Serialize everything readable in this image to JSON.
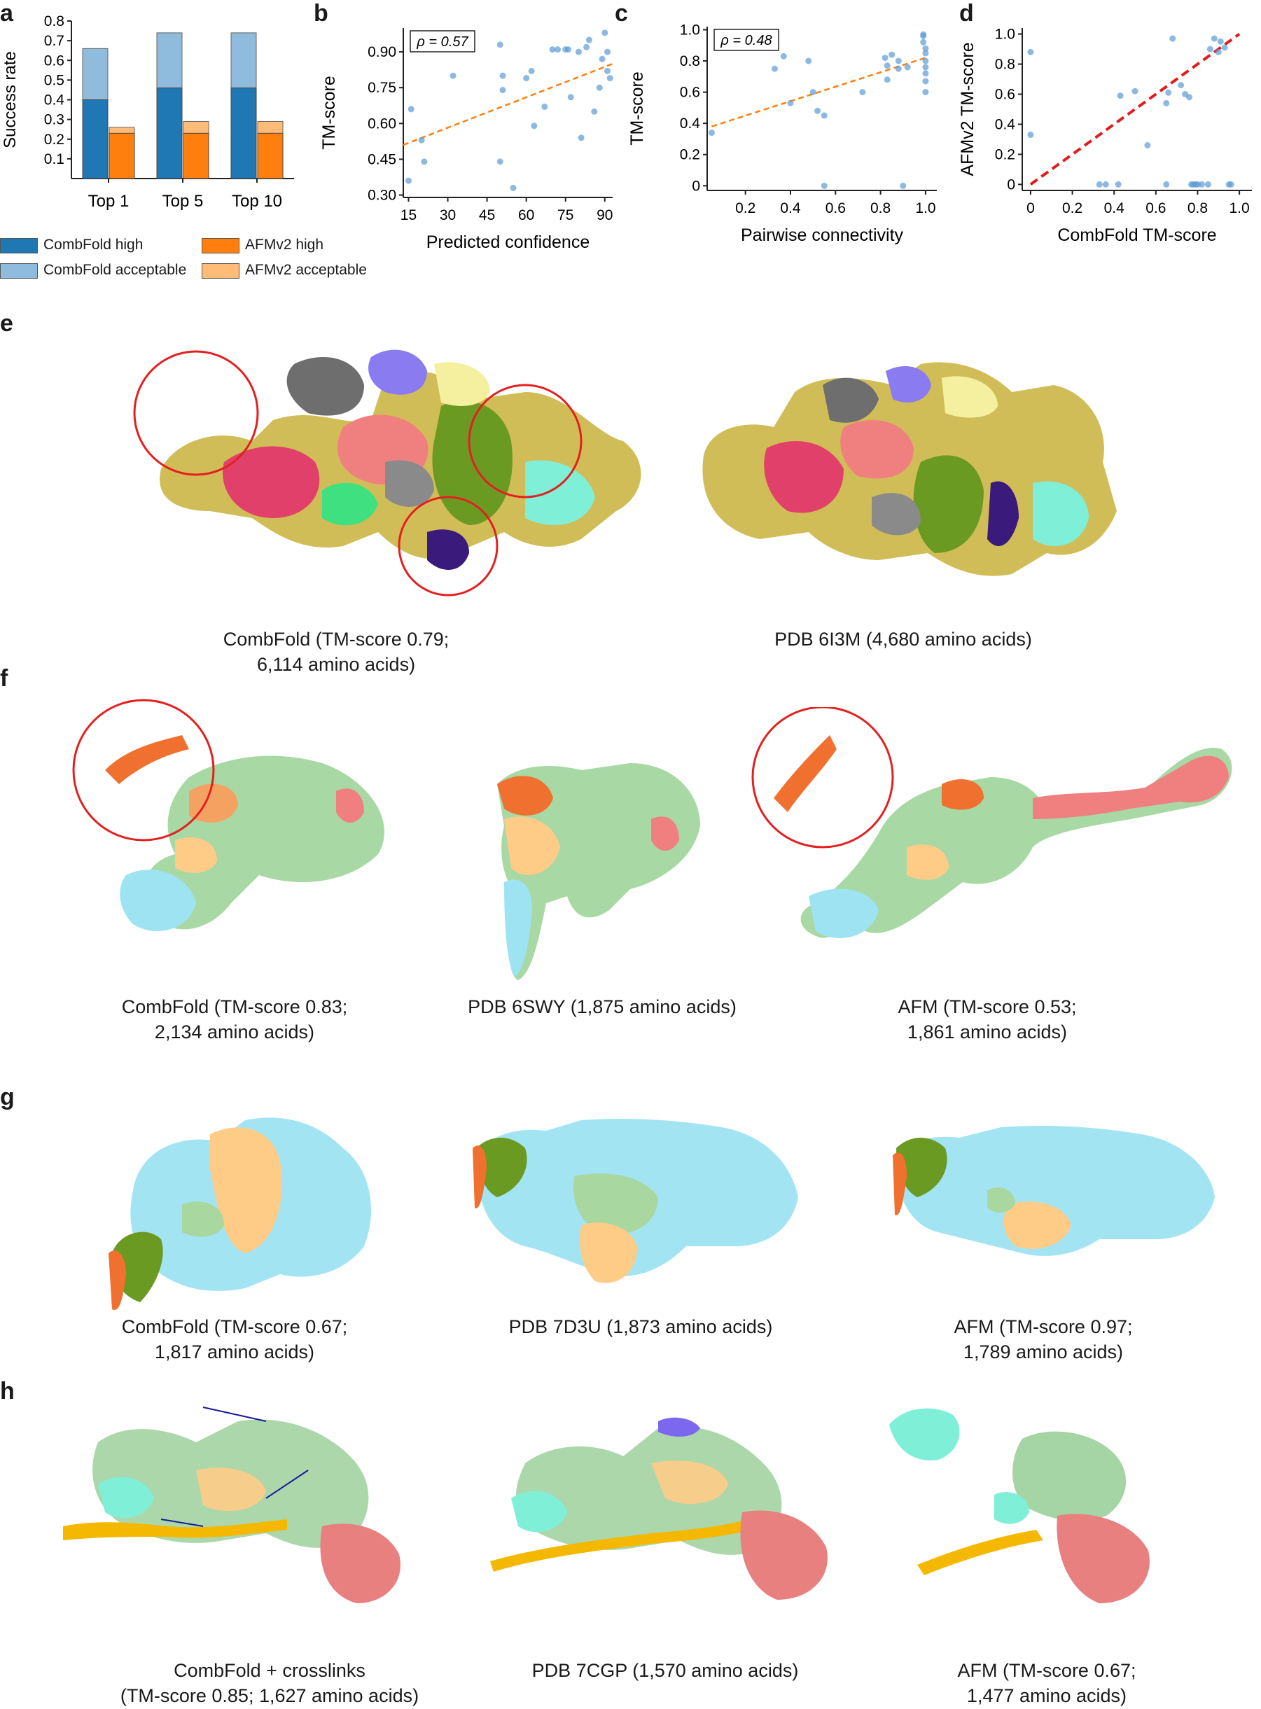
{
  "panels": {
    "a": {
      "label": "a"
    },
    "b": {
      "label": "b"
    },
    "c": {
      "label": "c"
    },
    "d": {
      "label": "d"
    },
    "e": {
      "label": "e"
    },
    "f": {
      "label": "f"
    },
    "g": {
      "label": "g"
    },
    "h": {
      "label": "h"
    }
  },
  "chart_data": [
    {
      "panel": "a",
      "type": "bar",
      "ylabel": "Success rate",
      "xlabel": "",
      "categories": [
        "Top 1",
        "Top 5",
        "Top 10"
      ],
      "ylim": [
        0,
        0.8
      ],
      "yticks": [
        "0.1",
        "0.2",
        "0.3",
        "0.4",
        "0.5",
        "0.6",
        "0.7",
        "0.8"
      ],
      "series": [
        {
          "name": "CombFold high",
          "values": [
            0.4,
            0.46,
            0.46
          ],
          "color": "#1f77b4"
        },
        {
          "name": "CombFold acceptable",
          "values": [
            0.66,
            0.74,
            0.74
          ],
          "color": "#8fbbdc"
        },
        {
          "name": "AFMv2 high",
          "values": [
            0.23,
            0.23,
            0.23
          ],
          "color": "#ff7f0e"
        },
        {
          "name": "AFMv2 acceptable",
          "values": [
            0.26,
            0.29,
            0.29
          ],
          "color": "#ffbb78"
        }
      ],
      "legend": [
        "CombFold high",
        "CombFold acceptable",
        "AFMv2 high",
        "AFMv2 acceptable"
      ]
    },
    {
      "panel": "b",
      "type": "scatter",
      "xlabel": "Predicted confidence",
      "ylabel": "TM-score",
      "annotation": "ρ = 0.57",
      "xlim": [
        13,
        93
      ],
      "ylim": [
        0.29,
        1.0
      ],
      "xticks": [
        "15",
        "30",
        "45",
        "60",
        "75",
        "90"
      ],
      "yticks": [
        "0.30",
        "0.45",
        "0.60",
        "0.75",
        "0.90"
      ],
      "trend": {
        "x": [
          13,
          93
        ],
        "y": [
          0.51,
          0.85
        ]
      },
      "points": [
        [
          15,
          0.36
        ],
        [
          16,
          0.66
        ],
        [
          20,
          0.53
        ],
        [
          21,
          0.44
        ],
        [
          32,
          0.8
        ],
        [
          50,
          0.93
        ],
        [
          51,
          0.8
        ],
        [
          51,
          0.74
        ],
        [
          50,
          0.44
        ],
        [
          55,
          0.33
        ],
        [
          60,
          0.79
        ],
        [
          62,
          0.82
        ],
        [
          63,
          0.59
        ],
        [
          67,
          0.67
        ],
        [
          70,
          0.91
        ],
        [
          72,
          0.91
        ],
        [
          75,
          0.91
        ],
        [
          76,
          0.91
        ],
        [
          77,
          0.71
        ],
        [
          80,
          0.9
        ],
        [
          81,
          0.54
        ],
        [
          83,
          0.92
        ],
        [
          84,
          0.95
        ],
        [
          86,
          0.65
        ],
        [
          88,
          0.75
        ],
        [
          89,
          0.87
        ],
        [
          90,
          0.98
        ],
        [
          91,
          0.9
        ],
        [
          91,
          0.82
        ],
        [
          92,
          0.79
        ]
      ]
    },
    {
      "panel": "c",
      "type": "scatter",
      "xlabel": "Pairwise connectivity",
      "ylabel": "TM-score",
      "annotation": "ρ = 0.48",
      "xlim": [
        0.03,
        1.05
      ],
      "ylim": [
        -0.03,
        1.02
      ],
      "xticks": [
        "0.2",
        "0.4",
        "0.6",
        "0.8",
        "1.0"
      ],
      "yticks": [
        "0",
        "0.2",
        "0.4",
        "0.6",
        "0.8",
        "1.0"
      ],
      "trend": {
        "x": [
          0.05,
          1.0
        ],
        "y": [
          0.38,
          0.82
        ]
      },
      "points": [
        [
          0.05,
          0.34
        ],
        [
          0.33,
          0.75
        ],
        [
          0.37,
          0.83
        ],
        [
          0.4,
          0.53
        ],
        [
          0.48,
          0.8
        ],
        [
          0.5,
          0.6
        ],
        [
          0.52,
          0.48
        ],
        [
          0.55,
          0.45
        ],
        [
          0.55,
          0.0
        ],
        [
          0.72,
          0.6
        ],
        [
          0.82,
          0.82
        ],
        [
          0.83,
          0.77
        ],
        [
          0.83,
          0.68
        ],
        [
          0.85,
          0.84
        ],
        [
          0.88,
          0.75
        ],
        [
          0.88,
          0.8
        ],
        [
          0.9,
          0.0
        ],
        [
          0.92,
          0.76
        ],
        [
          0.99,
          0.97
        ],
        [
          0.99,
          0.92
        ],
        [
          1.0,
          0.88
        ],
        [
          1.0,
          0.85
        ],
        [
          1.0,
          0.8
        ],
        [
          1.0,
          0.76
        ],
        [
          1.0,
          0.72
        ],
        [
          1.0,
          0.67
        ],
        [
          1.0,
          0.6
        ],
        [
          0.99,
          0.96
        ]
      ]
    },
    {
      "panel": "d",
      "type": "scatter",
      "xlabel": "CombFold TM-score",
      "ylabel": "AFMv2 TM-score",
      "xlim": [
        -0.04,
        1.06
      ],
      "ylim": [
        -0.04,
        1.04
      ],
      "xticks": [
        "0",
        "0.2",
        "0.4",
        "0.6",
        "0.8",
        "1.0"
      ],
      "yticks": [
        "0",
        "0.2",
        "0.4",
        "0.6",
        "0.8",
        "1.0"
      ],
      "diagonal": {
        "x": [
          0,
          1.0
        ],
        "y": [
          0,
          1.0
        ]
      },
      "points": [
        [
          0,
          0.88
        ],
        [
          0,
          0.33
        ],
        [
          0.33,
          0.0
        ],
        [
          0.36,
          0.0
        ],
        [
          0.42,
          0.0
        ],
        [
          0.43,
          0.59
        ],
        [
          0.5,
          0.62
        ],
        [
          0.56,
          0.26
        ],
        [
          0.65,
          0.54
        ],
        [
          0.65,
          0.0
        ],
        [
          0.66,
          0.61
        ],
        [
          0.68,
          0.97
        ],
        [
          0.72,
          0.66
        ],
        [
          0.74,
          0.6
        ],
        [
          0.76,
          0.58
        ],
        [
          0.77,
          0.0
        ],
        [
          0.78,
          0.0
        ],
        [
          0.79,
          0.0
        ],
        [
          0.8,
          0.0
        ],
        [
          0.82,
          0.0
        ],
        [
          0.85,
          0.0
        ],
        [
          0.86,
          0.9
        ],
        [
          0.88,
          0.97
        ],
        [
          0.9,
          0.88
        ],
        [
          0.91,
          0.95
        ],
        [
          0.93,
          0.91
        ],
        [
          0.95,
          0.0
        ],
        [
          0.96,
          0.0
        ]
      ]
    }
  ],
  "captions": {
    "e1": [
      "CombFold (TM-score 0.79;",
      "6,114 amino acids)"
    ],
    "e2": [
      "PDB 6I3M (4,680 amino acids)"
    ],
    "f1": [
      "CombFold (TM-score 0.83;",
      "2,134 amino acids)"
    ],
    "f2": [
      "PDB 6SWY (1,875 amino acids)"
    ],
    "f3": [
      "AFM (TM-score 0.53;",
      "1,861 amino acids)"
    ],
    "g1": [
      "CombFold (TM-score 0.67;",
      "1,817 amino acids)"
    ],
    "g2": [
      "PDB 7D3U (1,873 amino acids)"
    ],
    "g3": [
      "AFM (TM-score 0.97;",
      "1,789 amino acids)"
    ],
    "h1": [
      "CombFold + crosslinks",
      "(TM-score 0.85; 1,627 amino acids)"
    ],
    "h2": [
      "PDB 7CGP (1,570 amino acids)"
    ],
    "h3": [
      "AFM (TM-score 0.67;",
      "1,477 amino acids)"
    ]
  }
}
